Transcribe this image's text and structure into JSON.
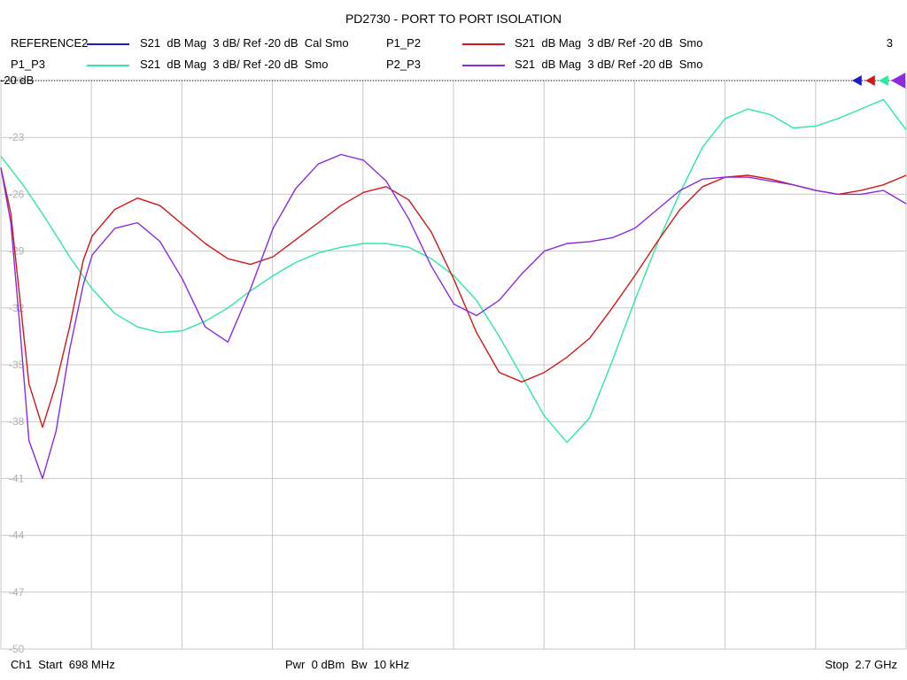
{
  "title": "PD2730 - PORT TO PORT ISOLATION",
  "legend": [
    {
      "label": "REFERENCE2",
      "desc": "S21  dB Mag  3 dB/ Ref -20 dB  Cal Smo",
      "color": "#1c1cc8"
    },
    {
      "label": "P1_P2",
      "desc": "S21  dB Mag  3 dB/ Ref -20 dB  Smo",
      "color": "#d01818"
    },
    {
      "label": "P1_P3",
      "desc": "S21  dB Mag  3 dB/ Ref -20 dB  Smo",
      "color": "#2ee8a0"
    },
    {
      "label": "P2_P3",
      "desc": "S21  dB Mag  3 dB/ Ref -20 dB  Smo",
      "color": "#8a2be2"
    }
  ],
  "marker_count": "3",
  "ref_label": "-20 dB",
  "footer": {
    "start": "Ch1  Start  698 MHz",
    "power": "Pwr  0 dBm  Bw  10 kHz",
    "stop": "Stop  2.7 GHz"
  },
  "chart_data": {
    "type": "line",
    "title": "PD2730 - PORT TO PORT ISOLATION",
    "xlabel": "",
    "ylabel": "",
    "xlim": [
      698,
      2700
    ],
    "ylim": [
      -50,
      -20
    ],
    "yticks": [
      -20,
      -23,
      -26,
      -29,
      -32,
      -35,
      -38,
      -41,
      -44,
      -47,
      -50
    ],
    "grid": true,
    "series": [
      {
        "name": "P1_P3",
        "color": "#2ee8a0",
        "x": [
          698,
          750,
          800,
          850,
          900,
          950,
          1000,
          1050,
          1100,
          1150,
          1200,
          1250,
          1300,
          1350,
          1400,
          1450,
          1500,
          1550,
          1600,
          1650,
          1700,
          1750,
          1800,
          1850,
          1900,
          1950,
          2000,
          2050,
          2100,
          2150,
          2200,
          2250,
          2300,
          2350,
          2400,
          2450,
          2500,
          2550,
          2600,
          2650,
          2700
        ],
        "values": [
          -24.0,
          -25.6,
          -27.4,
          -29.3,
          -31.0,
          -32.3,
          -33.0,
          -33.3,
          -33.2,
          -32.7,
          -32.0,
          -31.1,
          -30.3,
          -29.6,
          -29.1,
          -28.8,
          -28.6,
          -28.6,
          -28.8,
          -29.4,
          -30.3,
          -31.6,
          -33.5,
          -35.6,
          -37.7,
          -39.1,
          -37.8,
          -34.8,
          -31.6,
          -28.6,
          -25.9,
          -23.5,
          -22.0,
          -21.5,
          -21.8,
          -22.5,
          -22.4,
          -22.0,
          -21.5,
          -21.0,
          -22.6
        ]
      },
      {
        "name": "P1_P2",
        "color": "#d01818",
        "x": [
          698,
          720,
          740,
          760,
          790,
          820,
          850,
          880,
          900,
          950,
          1000,
          1050,
          1100,
          1150,
          1200,
          1250,
          1300,
          1350,
          1400,
          1450,
          1500,
          1550,
          1600,
          1650,
          1700,
          1750,
          1800,
          1850,
          1900,
          1950,
          2000,
          2050,
          2100,
          2150,
          2200,
          2250,
          2300,
          2350,
          2400,
          2450,
          2500,
          2550,
          2600,
          2650,
          2700
        ],
        "values": [
          -24.6,
          -27.0,
          -31.5,
          -36.0,
          -38.3,
          -36.0,
          -33.0,
          -29.5,
          -28.2,
          -26.8,
          -26.2,
          -26.6,
          -27.6,
          -28.6,
          -29.4,
          -29.7,
          -29.3,
          -28.4,
          -27.5,
          -26.6,
          -25.9,
          -25.6,
          -26.3,
          -28.0,
          -30.5,
          -33.3,
          -35.4,
          -35.9,
          -35.4,
          -34.6,
          -33.6,
          -32.0,
          -30.3,
          -28.5,
          -26.8,
          -25.6,
          -25.1,
          -25.0,
          -25.2,
          -25.5,
          -25.8,
          -26.0,
          -25.8,
          -25.5,
          -25.0
        ]
      },
      {
        "name": "P2_P3",
        "color": "#8a2be2",
        "x": [
          698,
          720,
          740,
          760,
          790,
          820,
          850,
          880,
          900,
          950,
          1000,
          1050,
          1100,
          1150,
          1200,
          1250,
          1300,
          1350,
          1400,
          1450,
          1500,
          1550,
          1600,
          1650,
          1700,
          1750,
          1800,
          1850,
          1900,
          1950,
          2000,
          2050,
          2100,
          2150,
          2200,
          2250,
          2300,
          2350,
          2400,
          2450,
          2500,
          2550,
          2600,
          2650,
          2700
        ],
        "values": [
          -24.6,
          -27.5,
          -33.0,
          -39.0,
          -41.0,
          -38.5,
          -34.2,
          -30.8,
          -29.2,
          -27.8,
          -27.5,
          -28.5,
          -30.5,
          -33.0,
          -33.8,
          -31.0,
          -27.8,
          -25.7,
          -24.4,
          -23.9,
          -24.2,
          -25.3,
          -27.3,
          -29.8,
          -31.8,
          -32.4,
          -31.6,
          -30.2,
          -29.0,
          -28.6,
          -28.5,
          -28.3,
          -27.8,
          -26.8,
          -25.8,
          -25.2,
          -25.1,
          -25.1,
          -25.3,
          -25.5,
          -25.8,
          -26.0,
          -26.0,
          -25.8,
          -26.5
        ]
      }
    ]
  }
}
